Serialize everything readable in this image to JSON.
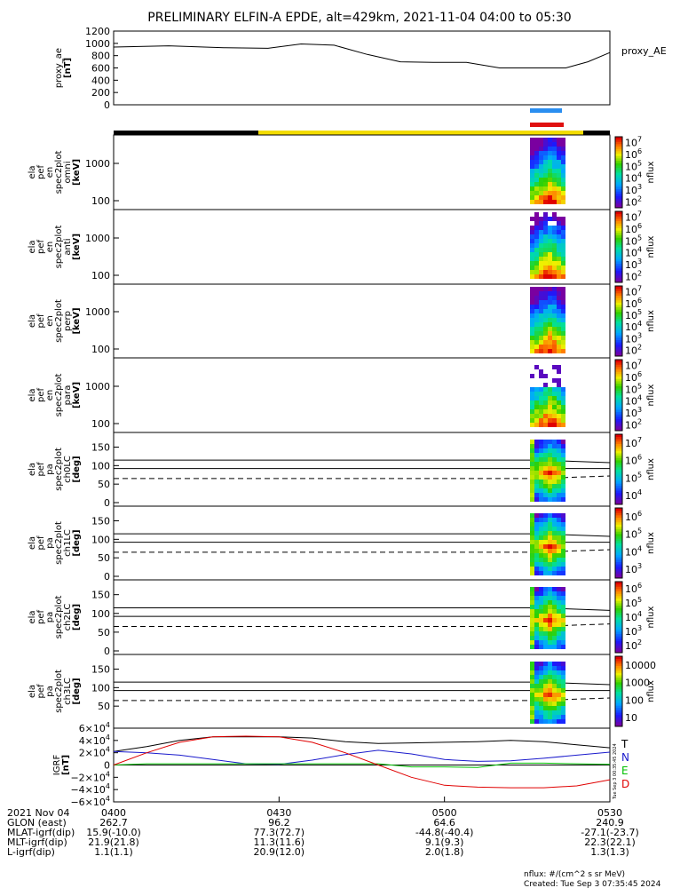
{
  "title": "PRELIMINARY ELFIN-A EPDE, alt=429km, 2021-11-04 04:00 to 05:30",
  "colors": {
    "black": "#000000",
    "yellow": "#f2dc00",
    "blue_bar": "#2a8ef0",
    "red_bar": "#e01010",
    "igrf_t": "#000000",
    "igrf_n": "#1a1acc",
    "igrf_e": "#00c000",
    "igrf_d": "#e00000"
  },
  "chart_data": [
    {
      "type": "line",
      "panel": "proxy_ae",
      "ylabel": [
        "proxy_ae",
        "[nT]"
      ],
      "series_label": "proxy_AE",
      "ylim": [
        0,
        1200
      ],
      "yticks": [
        "0",
        "200",
        "400",
        "600",
        "800",
        "1000",
        "1200"
      ],
      "x_minutes": [
        0,
        10,
        20,
        28,
        34,
        40,
        46,
        52,
        58,
        64,
        70,
        76,
        82,
        86,
        90
      ],
      "values": [
        940,
        960,
        930,
        920,
        990,
        970,
        820,
        700,
        690,
        690,
        600,
        600,
        600,
        700,
        850
      ]
    },
    {
      "type": "heatmap",
      "panel": "en_spec_omni",
      "ylabel": [
        "ela",
        "pef",
        "en",
        "spec2plot",
        "omni",
        "[keV]"
      ],
      "yticks": [
        "100",
        "1000"
      ],
      "colorbar_ticks": [
        "10^2",
        "10^3",
        "10^4",
        "10^5",
        "10^6",
        "10^7"
      ],
      "colorbar_label": "nflux",
      "time_range_min": [
        78,
        82
      ]
    },
    {
      "type": "heatmap",
      "panel": "en_spec_anti",
      "ylabel": [
        "ela",
        "pef",
        "en",
        "spec2plot",
        "anti",
        "[keV]"
      ],
      "yticks": [
        "100",
        "1000"
      ],
      "colorbar_ticks": [
        "10^2",
        "10^3",
        "10^4",
        "10^5",
        "10^6",
        "10^7"
      ],
      "colorbar_label": "nflux",
      "time_range_min": [
        78,
        82
      ]
    },
    {
      "type": "heatmap",
      "panel": "en_spec_perp",
      "ylabel": [
        "ela",
        "pef",
        "en",
        "spec2plot",
        "perp",
        "[keV]"
      ],
      "yticks": [
        "100",
        "1000"
      ],
      "colorbar_ticks": [
        "10^2",
        "10^3",
        "10^4",
        "10^5",
        "10^6",
        "10^7"
      ],
      "colorbar_label": "nflux",
      "time_range_min": [
        78,
        82
      ]
    },
    {
      "type": "heatmap",
      "panel": "en_spec_para",
      "ylabel": [
        "ela",
        "pef",
        "en",
        "spec2plot",
        "para",
        "[keV]"
      ],
      "yticks": [
        "100",
        "1000"
      ],
      "colorbar_ticks": [
        "10^2",
        "10^3",
        "10^4",
        "10^5",
        "10^6",
        "10^7"
      ],
      "colorbar_label": "nflux",
      "time_range_min": [
        78,
        82
      ]
    },
    {
      "type": "heatmap",
      "panel": "pa_spec_ch0LC",
      "ylabel": [
        "ela",
        "pef",
        "pa",
        "spec2plot",
        "ch0LC",
        "[deg]"
      ],
      "yticks": [
        "0",
        "50",
        "100",
        "150"
      ],
      "colorbar_ticks": [
        "10^4",
        "10^5",
        "10^6",
        "10^7"
      ],
      "colorbar_label": "nflux"
    },
    {
      "type": "heatmap",
      "panel": "pa_spec_ch1LC",
      "ylabel": [
        "ela",
        "pef",
        "pa",
        "spec2plot",
        "ch1LC",
        "[deg]"
      ],
      "yticks": [
        "0",
        "50",
        "100",
        "150"
      ],
      "colorbar_ticks": [
        "10^3",
        "10^4",
        "10^5",
        "10^6"
      ],
      "colorbar_label": "nflux"
    },
    {
      "type": "heatmap",
      "panel": "pa_spec_ch2LC",
      "ylabel": [
        "ela",
        "pef",
        "pa",
        "spec2plot",
        "ch2LC",
        "[deg]"
      ],
      "yticks": [
        "0",
        "50",
        "100",
        "150"
      ],
      "colorbar_ticks": [
        "10^2",
        "10^3",
        "10^4",
        "10^5",
        "10^6"
      ],
      "colorbar_label": "nflux"
    },
    {
      "type": "heatmap",
      "panel": "pa_spec_ch3LC",
      "ylabel": [
        "ela",
        "pef",
        "pa",
        "spec2plot",
        "ch3LC",
        "[deg]"
      ],
      "yticks": [
        "50",
        "100",
        "150"
      ],
      "colorbar_ticks": [
        "10",
        "100",
        "1000",
        "10000"
      ],
      "colorbar_label": "nflux"
    },
    {
      "type": "line",
      "panel": "igrf",
      "ylabel": [
        "IGRF",
        "[nT]"
      ],
      "yticks": [
        "−6×10^4",
        "−4×10^4",
        "−2×10^4",
        "0",
        "2×10^4",
        "4×10^4",
        "6×10^4"
      ],
      "ylim": [
        -60000,
        60000
      ],
      "x_minutes": [
        0,
        6,
        12,
        18,
        24,
        30,
        36,
        42,
        48,
        54,
        60,
        66,
        72,
        78,
        84,
        90
      ],
      "series": [
        {
          "name": "T",
          "values": [
            22000,
            30000,
            40000,
            46000,
            46000,
            46000,
            44000,
            38000,
            35000,
            36000,
            37000,
            38000,
            40000,
            38000,
            33000,
            28000
          ]
        },
        {
          "name": "N",
          "values": [
            22000,
            20000,
            16000,
            9000,
            2000,
            1000,
            8000,
            17000,
            24000,
            18000,
            9000,
            6000,
            7000,
            11000,
            16000,
            21000
          ]
        },
        {
          "name": "E",
          "values": [
            0,
            2000,
            2000,
            2000,
            2000,
            2000,
            2000,
            2000,
            2000,
            -3000,
            -3000,
            -4000,
            3000,
            3000,
            2000,
            1000
          ]
        },
        {
          "name": "D",
          "values": [
            0,
            20000,
            37000,
            46000,
            47000,
            46000,
            37000,
            20000,
            0,
            -20000,
            -33000,
            -36000,
            -37000,
            -37000,
            -34000,
            -24000
          ]
        }
      ]
    }
  ],
  "axis": {
    "row_labels": [
      "2021 Nov 04",
      "GLON (east)",
      "MLAT-igrf(dip)",
      "MLT-igrf(dip)",
      "L-igrf(dip)"
    ],
    "ticks": [
      {
        "label": "0400",
        "values": [
          "262.7",
          "15.9(-10.0)",
          "21.9(21.8)",
          "1.1(1.1)"
        ]
      },
      {
        "label": "0430",
        "values": [
          "96.2",
          "77.3(72.7)",
          "11.3(11.6)",
          "20.9(12.0)"
        ]
      },
      {
        "label": "0500",
        "values": [
          "64.6",
          "-44.8(-40.4)",
          "9.1(9.3)",
          "2.0(1.8)"
        ]
      },
      {
        "label": "0530",
        "values": [
          "240.9",
          "-27.1(-23.7)",
          "22.3(22.1)",
          "1.3(1.3)"
        ]
      }
    ]
  },
  "footer": {
    "units": "nflux: #/(cm^2 s sr MeV)",
    "created": "Created: Tue Sep  3 07:35:45 2024",
    "side_stamp": "Tue Sep  3 00:35:45 2024"
  }
}
